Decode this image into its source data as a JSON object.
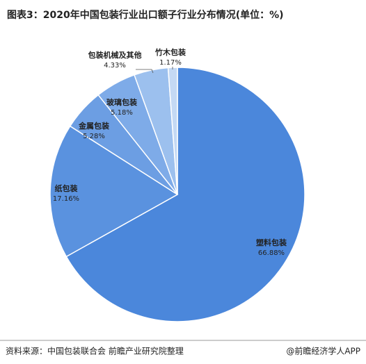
{
  "chart_data": {
    "type": "pie",
    "title": "图表3：2020年中国包装行业出口额子行业分布情况(单位：%)",
    "categories": [
      "塑料包装",
      "纸包装",
      "金属包装",
      "玻璃包装",
      "包装机械及其他",
      "竹木包装"
    ],
    "values": [
      66.88,
      17.16,
      5.28,
      5.18,
      4.33,
      1.17
    ],
    "value_labels": [
      "66.88%",
      "17.16%",
      "5.28%",
      "5.18%",
      "4.33%",
      "1.17%"
    ],
    "colors": [
      "#4b87db",
      "#5a92df",
      "#6c9ee3",
      "#7eabe8",
      "#9cc0ee",
      "#c4d9f4"
    ],
    "source": "资料来源：中国包装联合会 前瞻产业研究院整理",
    "credit": "@前瞻经济学人APP"
  }
}
